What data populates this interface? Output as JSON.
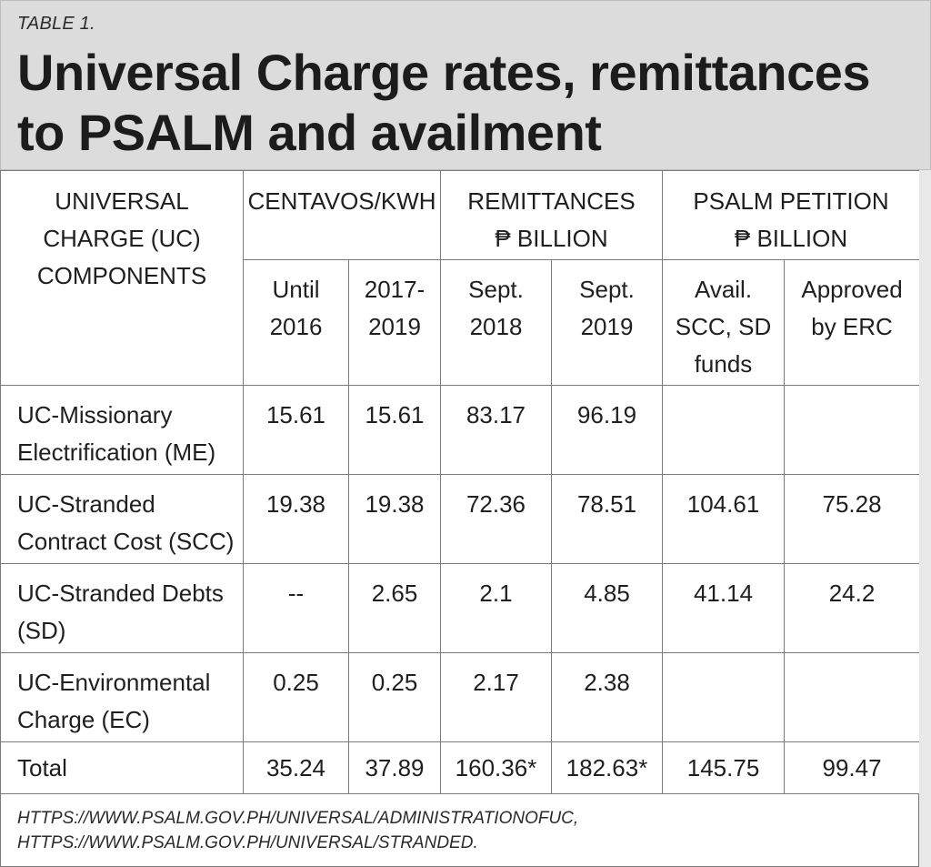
{
  "table_label": "TABLE 1.",
  "title": "Universal Charge rates, remittances to PSALM and availment",
  "headers": {
    "components": [
      "UNIVERSAL",
      "CHARGE (UC)",
      "COMPONENTS"
    ],
    "centavos": "CENTAVOS/KWH",
    "remittances": [
      "REMITTANCES",
      "₱ BILLION"
    ],
    "psalm": [
      "PSALM PETITION",
      "₱ BILLION"
    ],
    "sub": [
      [
        "Until",
        "2016"
      ],
      [
        "2017-",
        "2019"
      ],
      [
        "Sept.",
        "2018"
      ],
      [
        "Sept.",
        "2019"
      ],
      [
        "Avail.",
        "SCC, SD",
        "funds"
      ],
      [
        "Approved",
        "by ERC"
      ]
    ]
  },
  "rows": [
    {
      "label": [
        "UC-Missionary",
        "Electrification (ME)"
      ],
      "values": [
        "15.61",
        "15.61",
        "83.17",
        "96.19",
        "",
        ""
      ]
    },
    {
      "label": [
        "UC-Stranded",
        "Contract Cost (SCC)"
      ],
      "values": [
        "19.38",
        "19.38",
        "72.36",
        "78.51",
        "104.61",
        "75.28"
      ]
    },
    {
      "label": [
        "UC-Stranded Debts",
        "(SD)"
      ],
      "values": [
        "--",
        "2.65",
        "2.1",
        "4.85",
        "41.14",
        "24.2"
      ]
    },
    {
      "label": [
        "UC-Environmental",
        "Charge (EC)"
      ],
      "values": [
        "0.25",
        "0.25",
        "2.17",
        "2.38",
        "",
        ""
      ]
    },
    {
      "label": [
        "Total"
      ],
      "values": [
        "35.24",
        "37.89",
        "160.36*",
        "182.63*",
        "145.75",
        "99.47"
      ]
    }
  ],
  "source": [
    "HTTPS://WWW.PSALM.GOV.PH/UNIVERSAL/ADMINISTRATIONOFUC,",
    "HTTPS://WWW.PSALM.GOV.PH/UNIVERSAL/STRANDED."
  ]
}
